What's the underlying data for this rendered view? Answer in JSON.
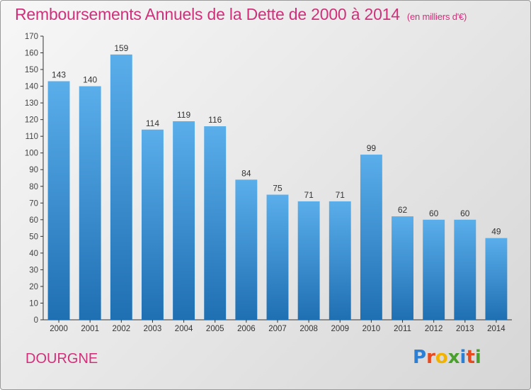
{
  "title": "Remboursements Annuels de la Dette de 2000 à 2014",
  "unit": "(en milliers d'€)",
  "place": "DOURGNE",
  "logo": {
    "text": "Proxiti",
    "letter_colors": [
      "#2b7fd4",
      "#e8491d",
      "#f2b200",
      "#4aa02c",
      "#2b7fd4",
      "#e8491d",
      "#4aa02c"
    ]
  },
  "colors": {
    "title": "#d0307a",
    "bar_top": "#5aaeea",
    "bar_bottom": "#1f6fb3",
    "axis": "#333333",
    "grid": "#d6d6d6"
  },
  "chart_data": {
    "type": "bar",
    "categories": [
      "2000",
      "2001",
      "2002",
      "2003",
      "2004",
      "2005",
      "2006",
      "2007",
      "2008",
      "2009",
      "2010",
      "2011",
      "2012",
      "2013",
      "2014"
    ],
    "values": [
      143,
      140,
      159,
      114,
      119,
      116,
      84,
      75,
      71,
      71,
      99,
      62,
      60,
      60,
      49
    ],
    "ylim": [
      0,
      170
    ],
    "ytick_step": 10,
    "grid": false,
    "data_labels": true
  }
}
